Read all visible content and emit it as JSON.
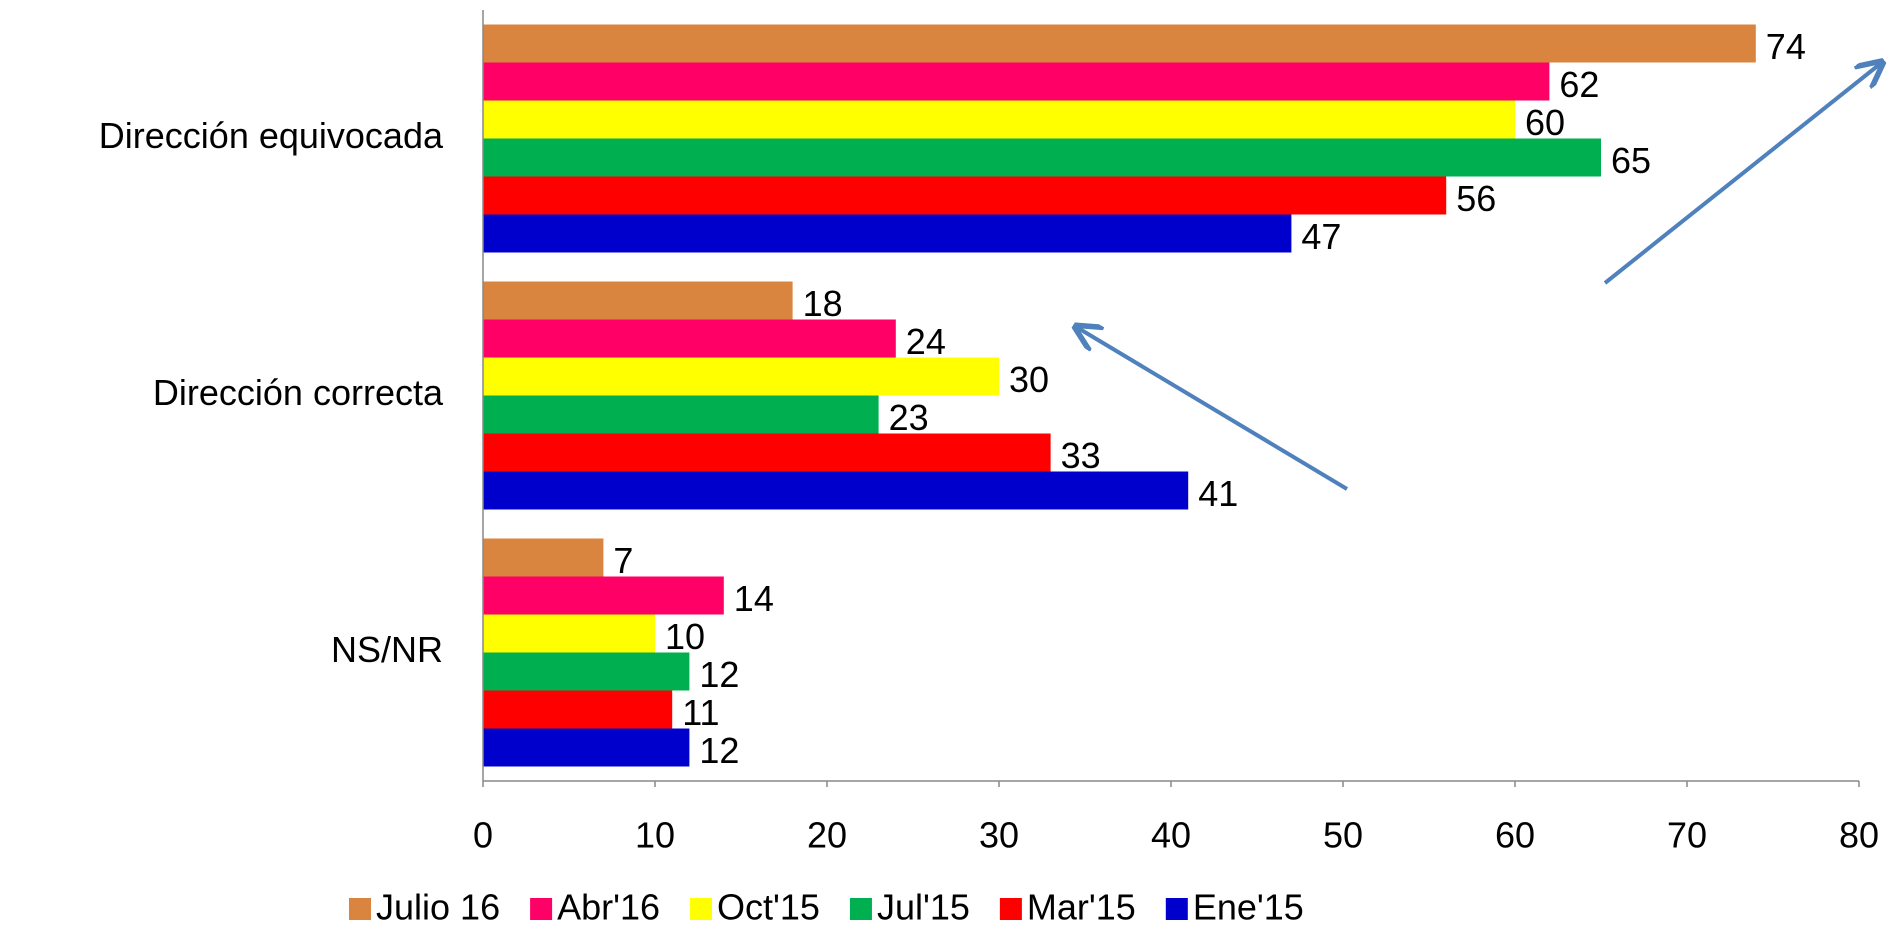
{
  "chart_data": {
    "type": "hbar",
    "categories": [
      "Dirección equivocada",
      "Dirección correcta",
      "NS/NR"
    ],
    "series": [
      {
        "name": "Julio 16",
        "color": "#d9843f",
        "values": [
          74,
          18,
          7
        ]
      },
      {
        "name": "Abr'16",
        "color": "#ff0066",
        "values": [
          62,
          24,
          14
        ]
      },
      {
        "name": "Oct'15",
        "color": "#ffff00",
        "values": [
          60,
          30,
          10
        ]
      },
      {
        "name": "Jul'15",
        "color": "#00b050",
        "values": [
          65,
          23,
          12
        ]
      },
      {
        "name": "Mar'15",
        "color": "#ff0000",
        "values": [
          56,
          33,
          11
        ]
      },
      {
        "name": "Ene'15",
        "color": "#0000cc",
        "values": [
          47,
          41,
          12
        ]
      }
    ],
    "xlim": [
      0,
      80
    ],
    "xticks": [
      0,
      10,
      20,
      30,
      40,
      50,
      60,
      70,
      80
    ],
    "grid": false,
    "legend": "bottom"
  }
}
